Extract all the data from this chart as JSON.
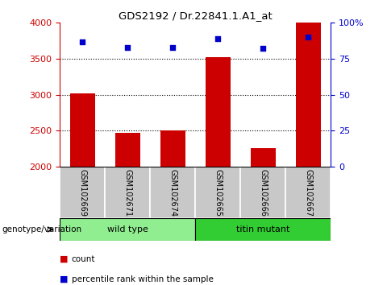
{
  "title": "GDS2192 / Dr.22841.1.A1_at",
  "samples": [
    "GSM102669",
    "GSM102671",
    "GSM102674",
    "GSM102665",
    "GSM102666",
    "GSM102667"
  ],
  "counts": [
    3020,
    2470,
    2510,
    3520,
    2260,
    4000
  ],
  "percentile_ranks": [
    87,
    83,
    83,
    89,
    82,
    90
  ],
  "bar_color": "#CC0000",
  "dot_color": "#0000CC",
  "ylim_left": [
    2000,
    4000
  ],
  "ylim_right": [
    0,
    100
  ],
  "yticks_left": [
    2000,
    2500,
    3000,
    3500,
    4000
  ],
  "yticks_right": [
    0,
    25,
    50,
    75,
    100
  ],
  "ytick_right_labels": [
    "0",
    "25",
    "50",
    "75",
    "100%"
  ],
  "legend_count": "count",
  "legend_pct": "percentile rank within the sample",
  "group_label": "genotype/variation",
  "group_names": [
    "wild type",
    "titin mutant"
  ],
  "wild_type_color": "#90EE90",
  "titin_color": "#32CD32",
  "label_bg_color": "#C8C8C8",
  "label_border_color": "#AAAAAA"
}
